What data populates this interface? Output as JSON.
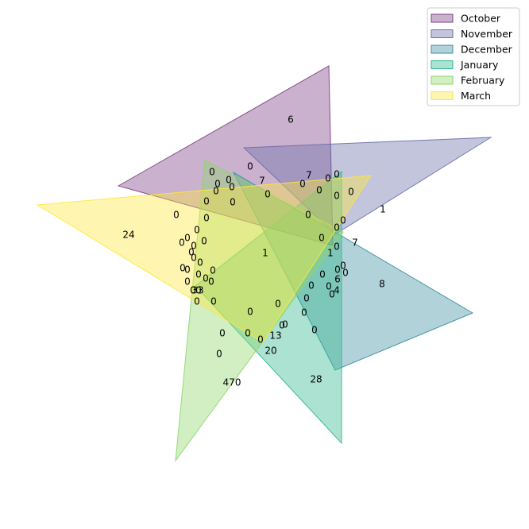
{
  "chart_data": {
    "type": "venn",
    "sets": [
      {
        "name": "October",
        "color": "#7b3d82"
      },
      {
        "name": "November",
        "color": "#6a6eaa"
      },
      {
        "name": "December",
        "color": "#3b8ea0"
      },
      {
        "name": "January",
        "color": "#2fb78c"
      },
      {
        "name": "February",
        "color": "#8fd66a"
      },
      {
        "name": "March",
        "color": "#fde83a"
      }
    ],
    "legend_position": "top-right",
    "region_counts": [
      "6",
      "1",
      "8",
      "28",
      "470",
      "24",
      "7",
      "0",
      "7",
      "0",
      "0",
      "0",
      "0",
      "0",
      "0",
      "0",
      "0",
      "0",
      "0",
      "0",
      "0",
      "0",
      "0",
      "0",
      "0",
      "0",
      "0",
      "0",
      "0",
      "0",
      "0",
      "0",
      "0",
      "0",
      "0",
      "0",
      "0",
      "0",
      "0",
      "0",
      "0",
      "0",
      "0",
      "0",
      "0",
      "0",
      "0",
      "0",
      "0",
      "0",
      "0",
      "0",
      "1",
      "1",
      "7",
      "0",
      "0",
      "0",
      "6",
      "4",
      "0",
      "0",
      "0",
      "0",
      "0",
      "0",
      "0",
      "33",
      "0",
      "0",
      "0",
      "13",
      "20",
      "0",
      "0"
    ]
  }
}
